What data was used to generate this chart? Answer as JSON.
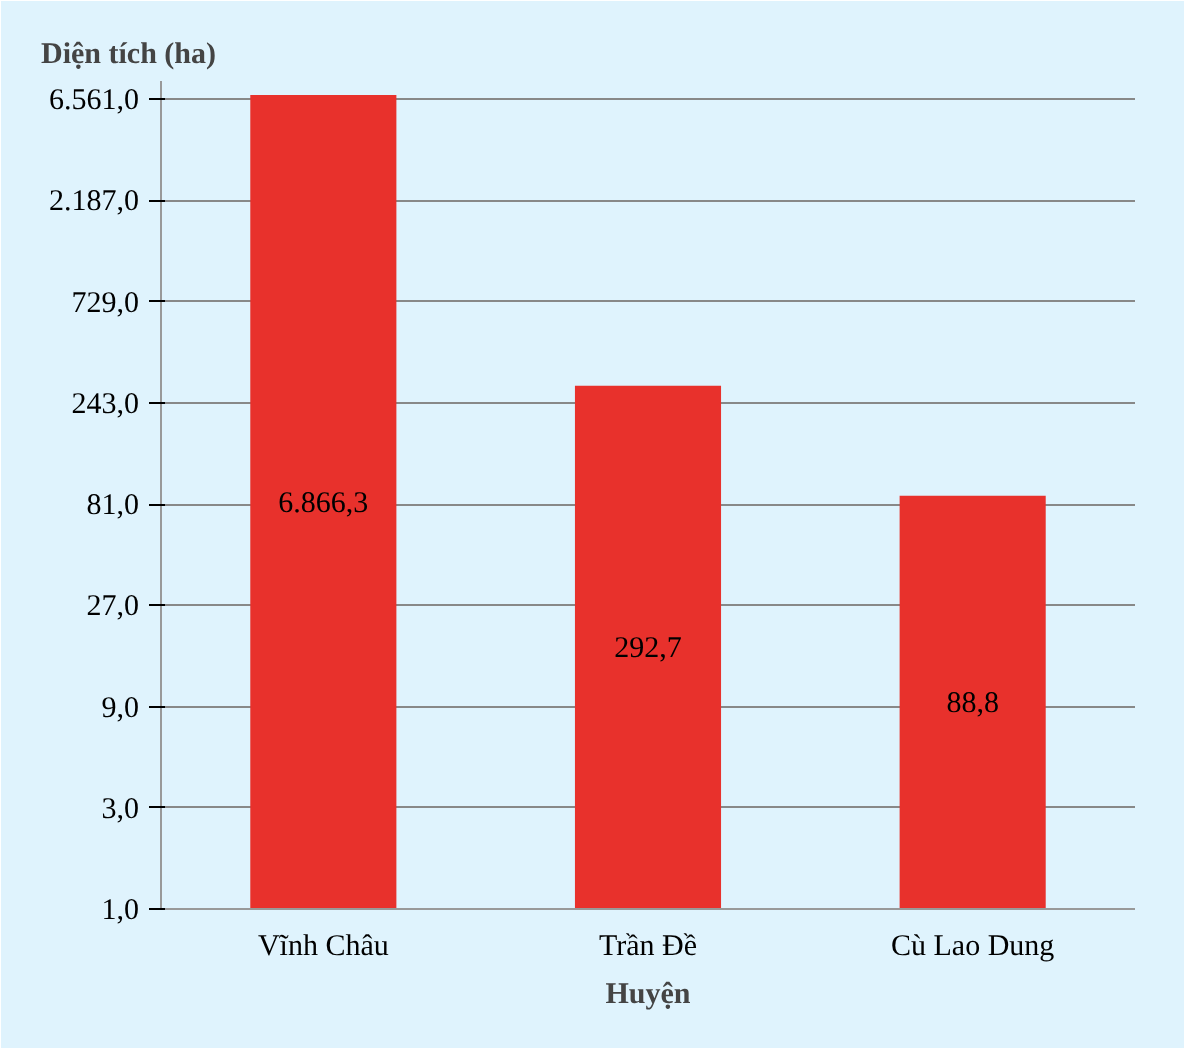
{
  "chart_data": {
    "type": "bar",
    "ylabel": "Diện tích (ha)",
    "xlabel": "Huyện",
    "categories": [
      "Vĩnh Châu",
      "Trần Đề",
      "Cù Lao Dung"
    ],
    "values": [
      6866.3,
      292.7,
      88.8
    ],
    "color": "#e8312c",
    "value_labels": [
      "6.866,3",
      "292,7",
      "88,8"
    ],
    "log": "y",
    "ylim": [
      1,
      8000
    ],
    "yticks": [
      {
        "value": 1,
        "label": "1,0"
      },
      {
        "value": 3,
        "label": "3,0"
      },
      {
        "value": 9,
        "label": "9,0"
      },
      {
        "value": 27,
        "label": "27,0"
      },
      {
        "value": 81,
        "label": "81,0"
      },
      {
        "value": 243,
        "label": "243,0"
      },
      {
        "value": 729,
        "label": "729,0"
      },
      {
        "value": 2187,
        "label": "2.187,0"
      },
      {
        "value": 6561,
        "label": "6.561,0"
      }
    ],
    "grid": "y"
  }
}
